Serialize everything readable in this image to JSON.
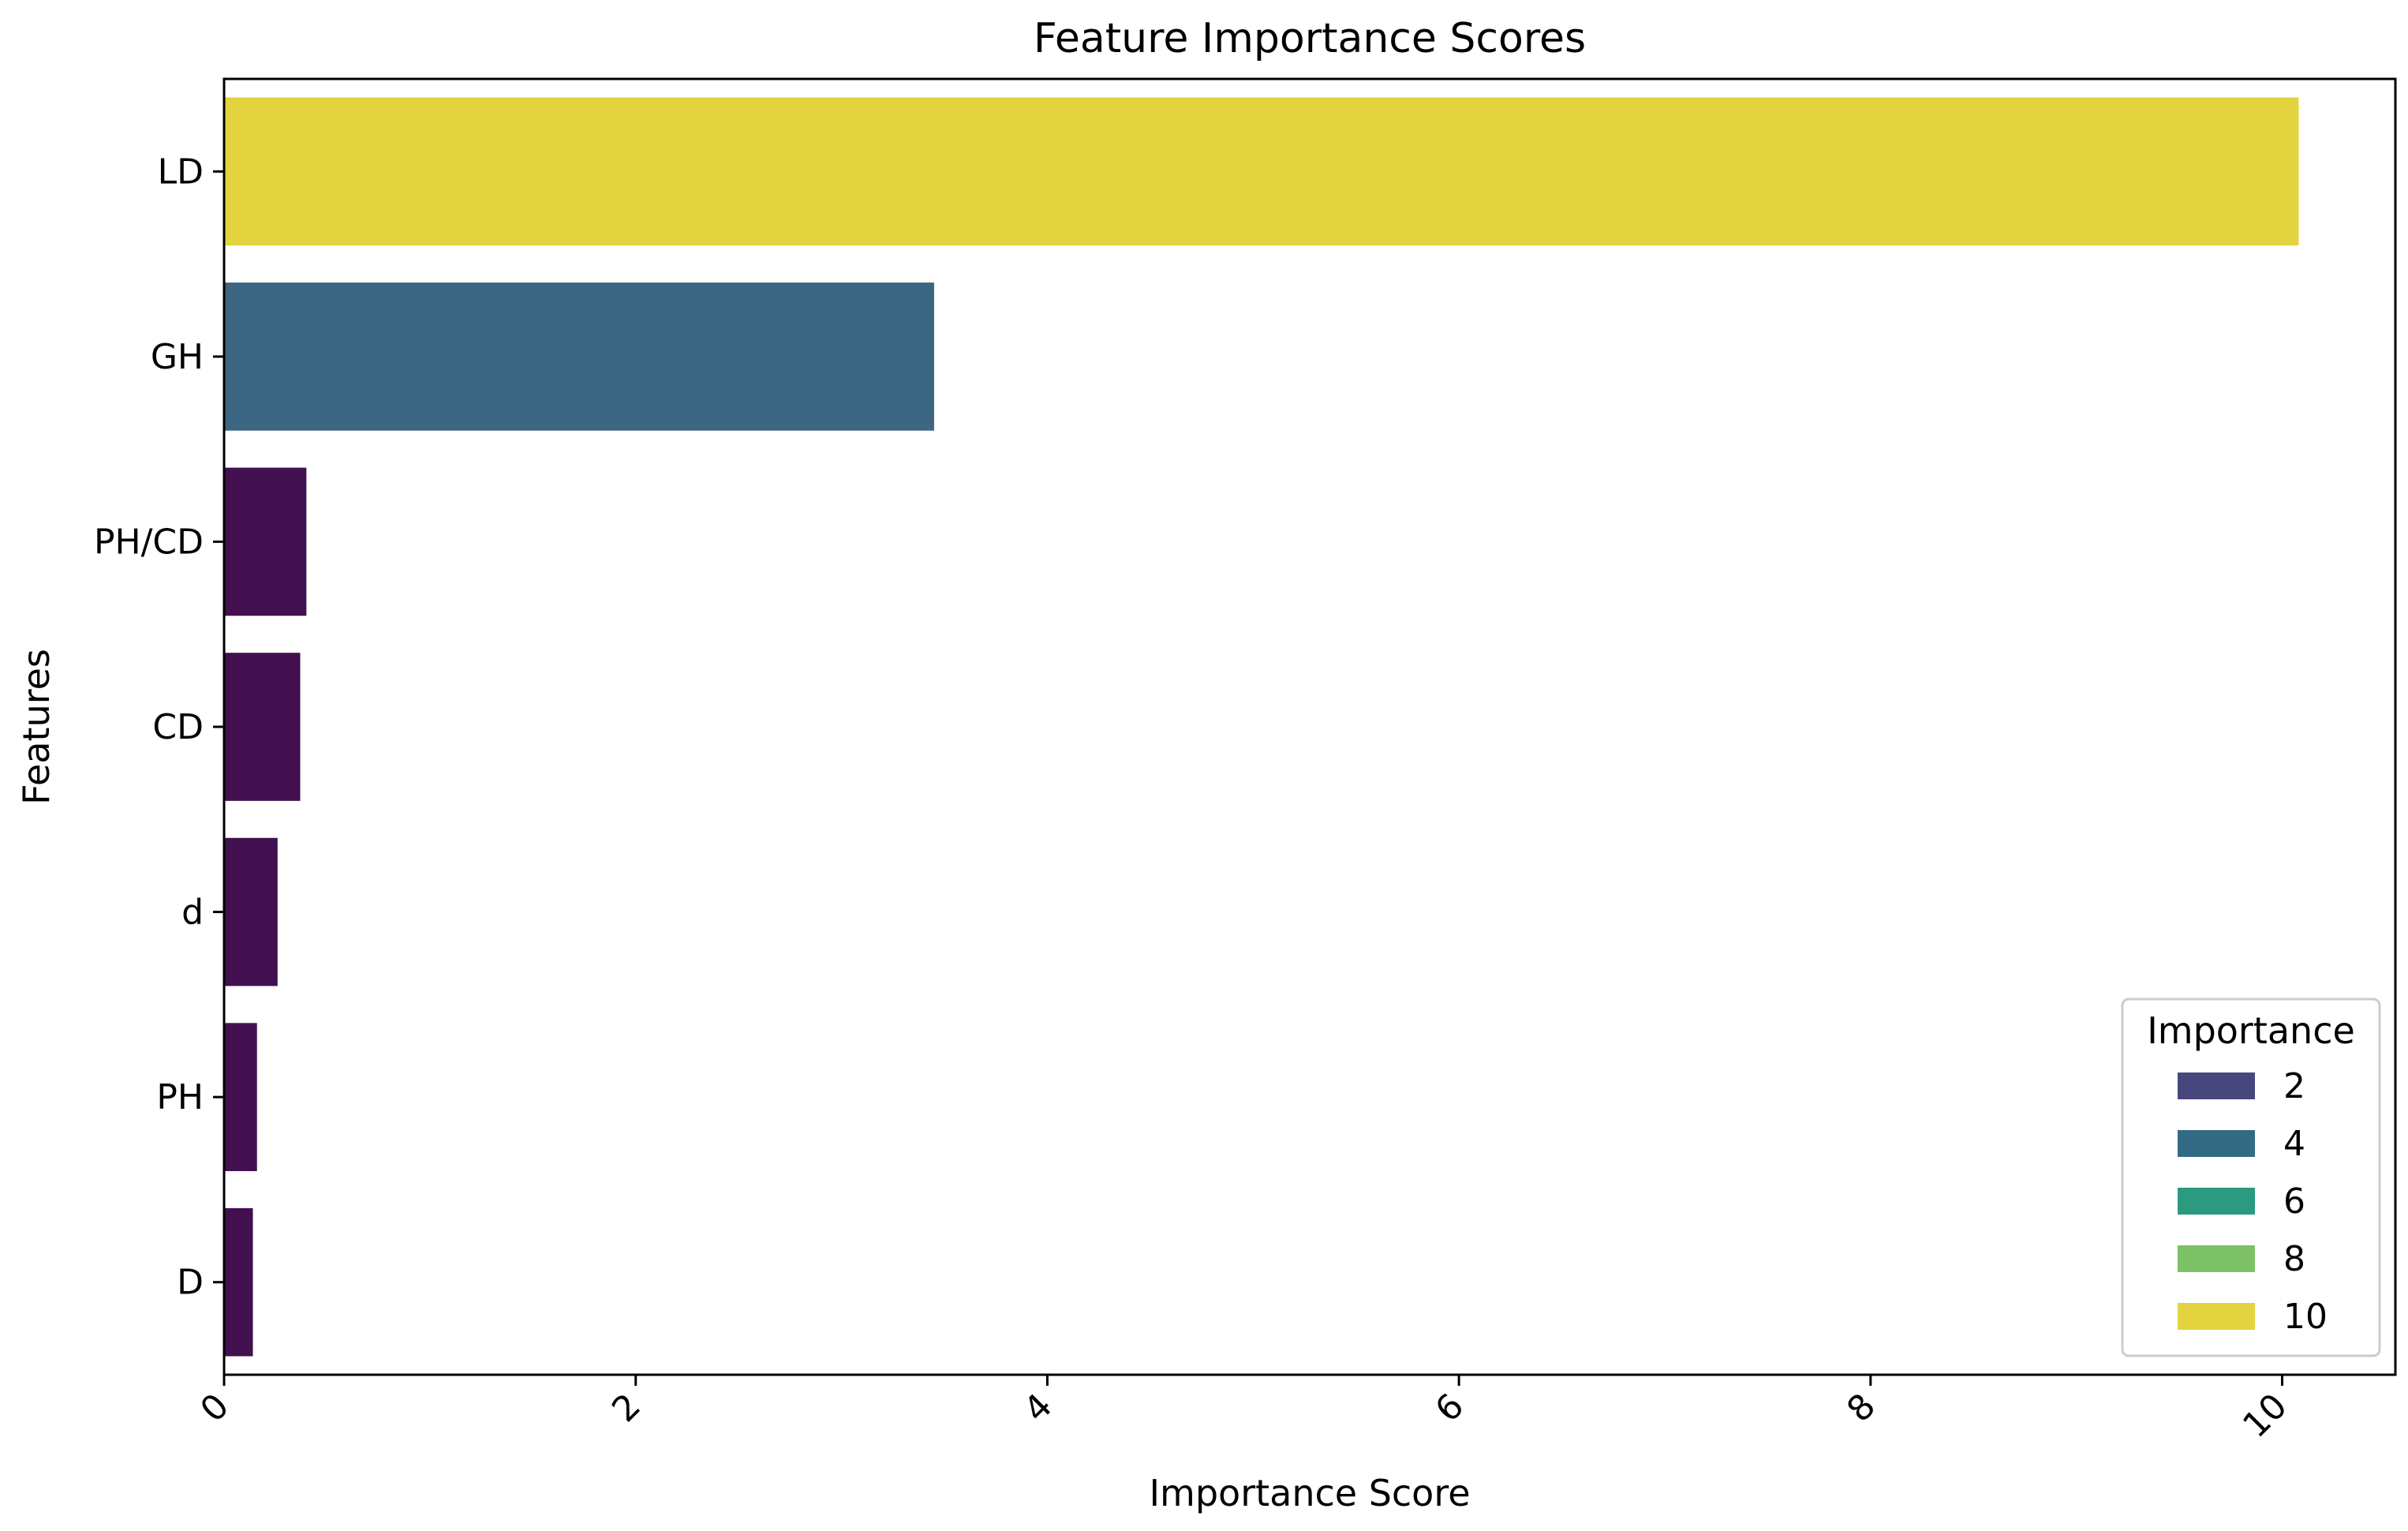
{
  "chart_data": {
    "type": "bar",
    "orientation": "horizontal",
    "title": "Feature Importance Scores",
    "xlabel": "Importance Score",
    "ylabel": "Features",
    "xlim": [
      0,
      10.55
    ],
    "xticks": [
      0,
      2,
      4,
      6,
      8,
      10
    ],
    "xtick_rotation": 45,
    "grid": false,
    "categories": [
      "LD",
      "GH",
      "PH/CD",
      "CD",
      "d",
      "PH",
      "D"
    ],
    "values": [
      10.08,
      3.45,
      0.4,
      0.37,
      0.26,
      0.16,
      0.14
    ],
    "bar_colors": [
      "#e2d33f",
      "#3d6682",
      "#42104f",
      "#42104f",
      "#42104f",
      "#42104f",
      "#42104f"
    ],
    "legend": {
      "title": "Importance",
      "placement": "lower-right",
      "entries": [
        {
          "label": "2",
          "color": "#47477e"
        },
        {
          "label": "4",
          "color": "#336b85"
        },
        {
          "label": "6",
          "color": "#2b9a80"
        },
        {
          "label": "8",
          "color": "#7cc165"
        },
        {
          "label": "10",
          "color": "#e2d33f"
        }
      ]
    }
  }
}
